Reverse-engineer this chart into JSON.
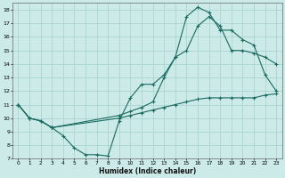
{
  "xlabel": "Humidex (Indice chaleur)",
  "bg_color": "#cceae8",
  "grid_color": "#aad4d0",
  "line_color": "#1a6b60",
  "xlim": [
    -0.5,
    23.5
  ],
  "ylim": [
    7,
    18.5
  ],
  "xticks": [
    0,
    1,
    2,
    3,
    4,
    5,
    6,
    7,
    8,
    9,
    10,
    11,
    12,
    13,
    14,
    15,
    16,
    17,
    18,
    19,
    20,
    21,
    22,
    23
  ],
  "yticks": [
    7,
    8,
    9,
    10,
    11,
    12,
    13,
    14,
    15,
    16,
    17,
    18
  ],
  "line1_x": [
    0,
    1,
    2,
    3,
    4,
    5,
    6,
    7,
    8,
    9,
    10,
    11,
    12,
    13,
    14,
    15,
    16,
    17,
    18,
    19,
    20,
    21,
    22,
    23
  ],
  "line1_y": [
    11,
    10,
    9.8,
    9.3,
    8.7,
    7.8,
    7.3,
    7.3,
    7.2,
    9.8,
    11.5,
    12.5,
    12.5,
    13.2,
    14.5,
    17.5,
    18.2,
    17.8,
    16.5,
    16.5,
    15.8,
    15.4,
    13.2,
    12.0
  ],
  "line2_x": [
    0,
    1,
    2,
    3,
    9,
    10,
    11,
    12,
    13,
    14,
    15,
    16,
    17,
    18,
    19,
    20,
    21,
    22,
    23
  ],
  "line2_y": [
    11,
    10,
    9.8,
    9.3,
    10.2,
    10.5,
    10.8,
    11.2,
    13.0,
    14.5,
    15.0,
    16.8,
    17.5,
    16.8,
    15.0,
    15.0,
    14.8,
    14.5,
    14.0
  ],
  "line3_x": [
    0,
    1,
    2,
    3,
    9,
    10,
    11,
    12,
    13,
    14,
    15,
    16,
    17,
    18,
    19,
    20,
    21,
    22,
    23
  ],
  "line3_y": [
    11,
    10,
    9.8,
    9.3,
    10.0,
    10.2,
    10.4,
    10.6,
    10.8,
    11.0,
    11.2,
    11.4,
    11.5,
    11.5,
    11.5,
    11.5,
    11.5,
    11.7,
    11.8
  ]
}
